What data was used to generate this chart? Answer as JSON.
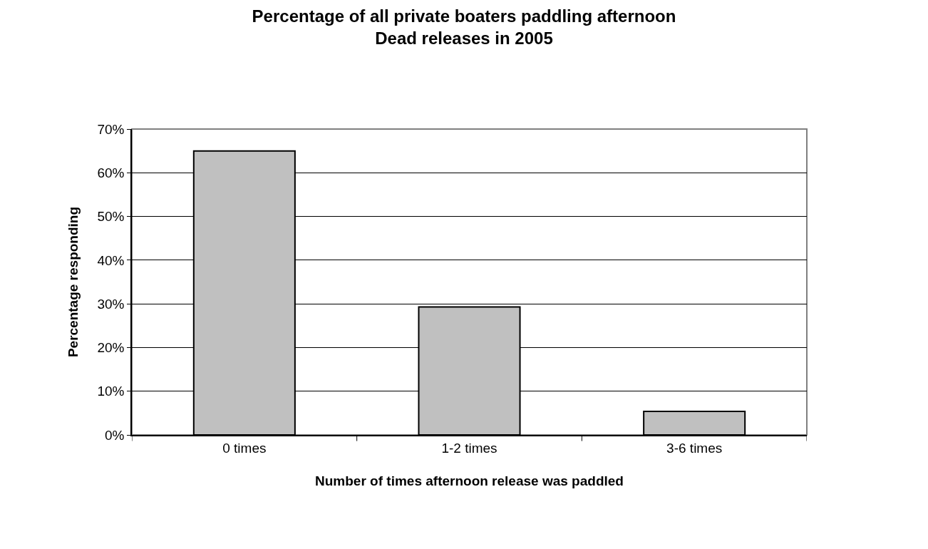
{
  "chart_data": {
    "type": "bar",
    "title": "Percentage of all private boaters paddling afternoon\nDead releases in 2005",
    "xlabel": "Number of times afternoon release was paddled",
    "ylabel": "Percentage responding",
    "categories": [
      "0 times",
      "1-2 times",
      "3-6 times"
    ],
    "values": [
      65.0,
      29.3,
      5.4
    ],
    "color": "#c0c0c0",
    "ylim": [
      0,
      70
    ],
    "yticks": [
      {
        "value": 0,
        "label": "0%"
      },
      {
        "value": 10,
        "label": "10%"
      },
      {
        "value": 20,
        "label": "20%"
      },
      {
        "value": 30,
        "label": "30%"
      },
      {
        "value": 40,
        "label": "40%"
      },
      {
        "value": 50,
        "label": "50%"
      },
      {
        "value": 60,
        "label": "60%"
      },
      {
        "value": 70,
        "label": "70%"
      }
    ],
    "grid": "y",
    "legend": false
  }
}
